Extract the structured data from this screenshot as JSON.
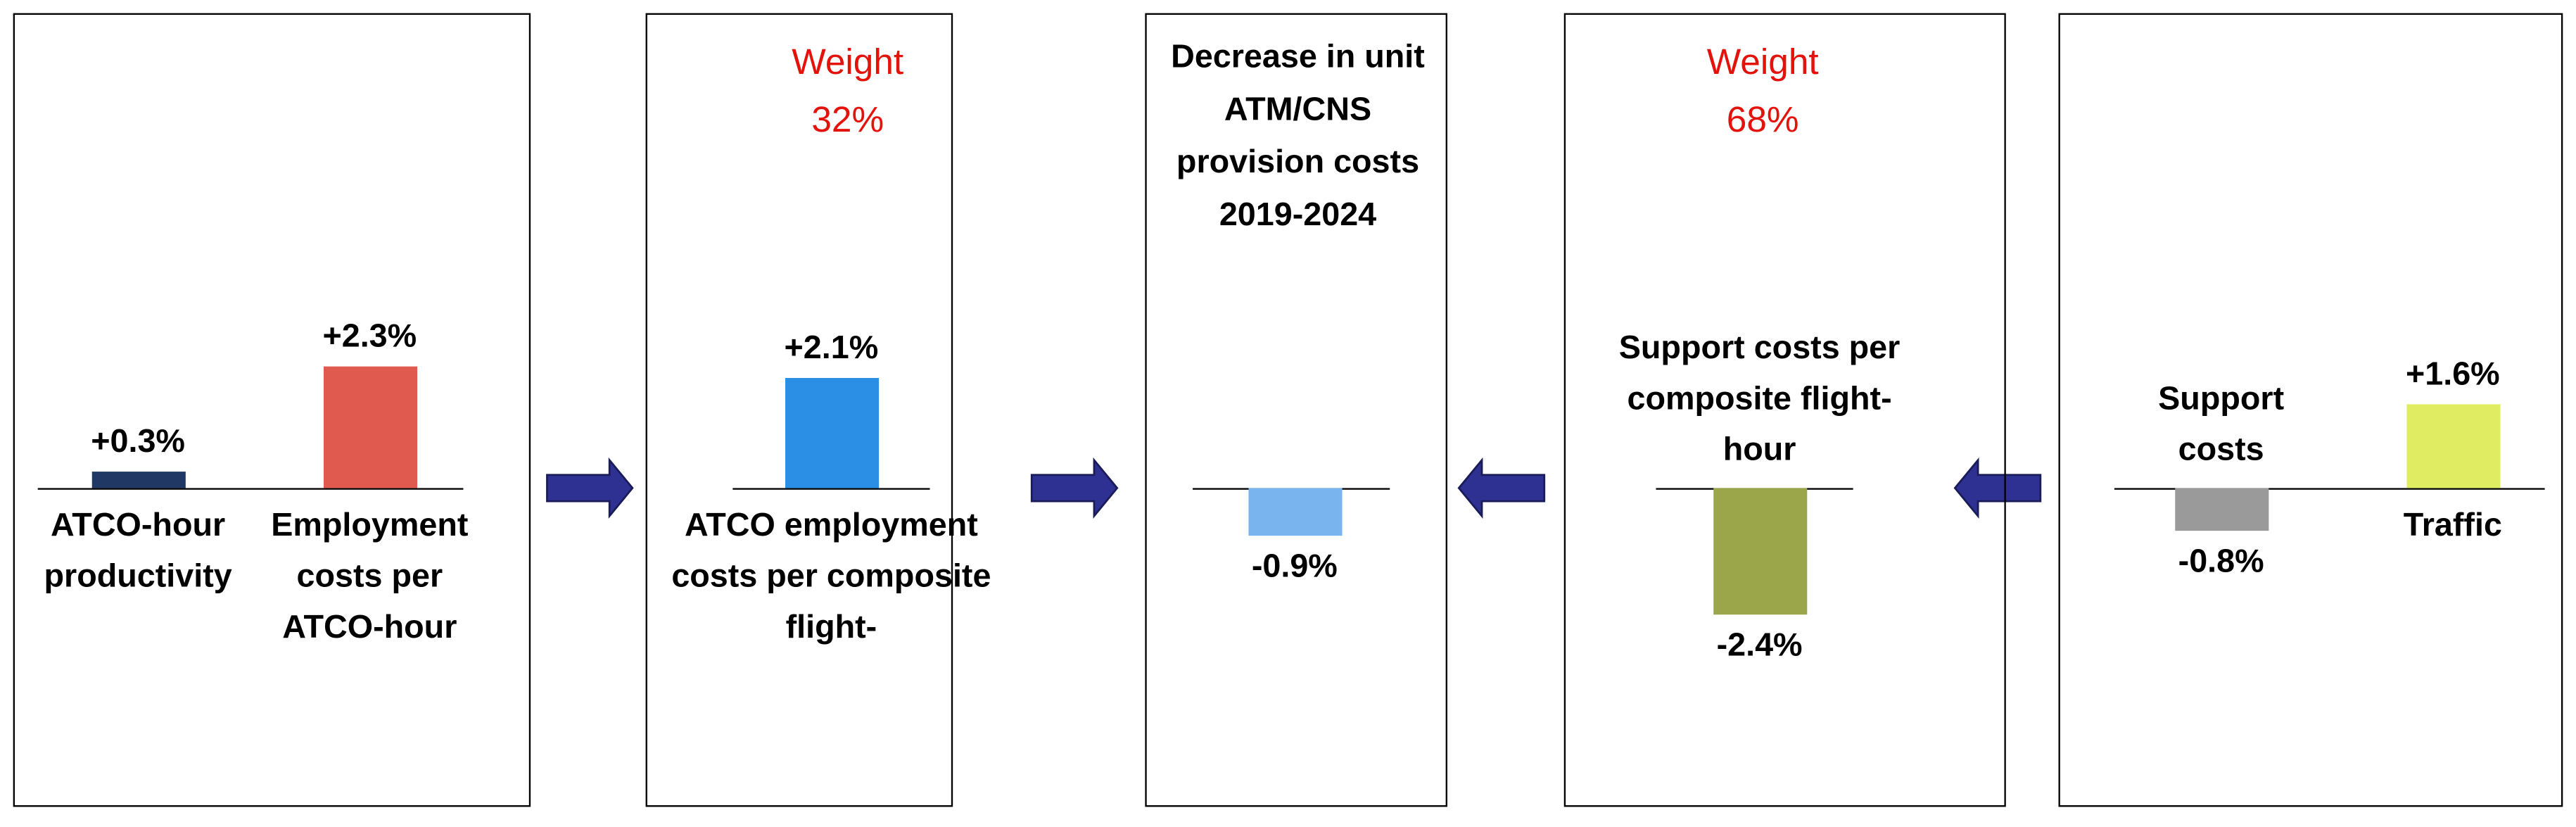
{
  "chart_data": [
    {
      "type": "bar",
      "categories": [
        "ATCO-hour productivity",
        "Employment costs per ATCO-hour"
      ],
      "values": [
        0.3,
        2.3
      ],
      "value_labels": [
        "+0.3%",
        "+2.3%"
      ],
      "colors": [
        "#1f3864",
        "#e05a50"
      ]
    },
    {
      "type": "bar",
      "annotation": [
        "Weight",
        "32%"
      ],
      "categories": [
        "ATCO employment costs per composite flight-"
      ],
      "values": [
        2.1
      ],
      "value_labels": [
        "+2.1%"
      ],
      "colors": [
        "#2b8fe6"
      ]
    },
    {
      "type": "bar",
      "title": "Decrease in unit ATM/CNS provision costs 2019-2024",
      "categories": [
        null
      ],
      "values": [
        -0.9
      ],
      "value_labels": [
        "-0.9%"
      ],
      "colors": [
        "#7ab4ee"
      ]
    },
    {
      "type": "bar",
      "annotation": [
        "Weight",
        "68%"
      ],
      "categories": [
        "Support costs per composite flight-hour"
      ],
      "values": [
        -2.4
      ],
      "value_labels": [
        "-2.4%"
      ],
      "colors": [
        "#9ba64b"
      ]
    },
    {
      "type": "bar",
      "categories": [
        "Support costs",
        "Traffic"
      ],
      "values": [
        -0.8,
        1.6
      ],
      "value_labels": [
        "-0.8%",
        "+1.6%"
      ],
      "colors": [
        "#9a9a9a",
        "#e0ec62"
      ]
    }
  ]
}
